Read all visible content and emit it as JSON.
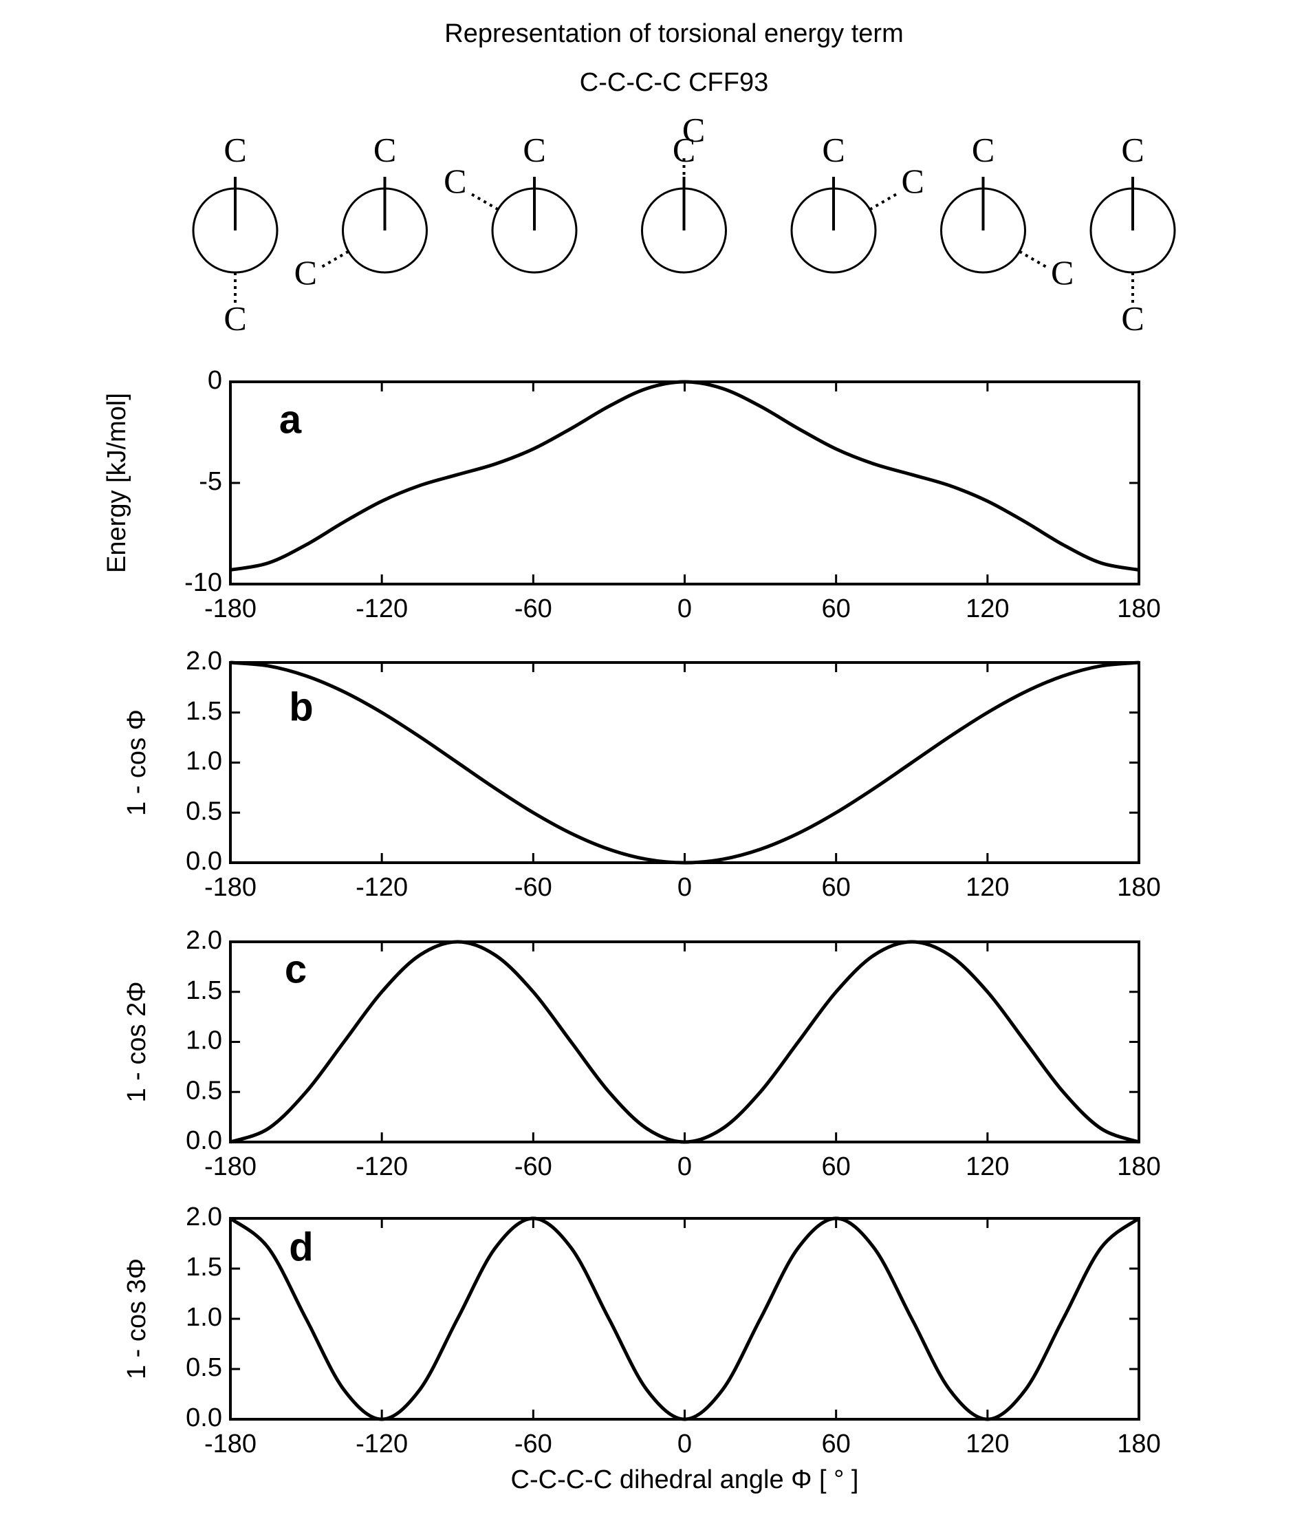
{
  "title": "Representation of torsional energy term",
  "subtitle": "C-C-C-C   CFF93",
  "newman_projections": [
    {
      "angle": -180,
      "front": "C",
      "back": "C"
    },
    {
      "angle": -120,
      "front": "C",
      "back": "C"
    },
    {
      "angle": -60,
      "front": "C",
      "back": "C"
    },
    {
      "angle": 0,
      "front": "C",
      "back": "C"
    },
    {
      "angle": 60,
      "front": "C",
      "back": "C"
    },
    {
      "angle": 120,
      "front": "C",
      "back": "C"
    },
    {
      "angle": 180,
      "front": "C",
      "back": "C"
    }
  ],
  "chart_data": [
    {
      "type": "line",
      "panel_label": "a",
      "ylabel": "Energy [kJ/mol]",
      "x": [
        -180,
        -165,
        -150,
        -135,
        -120,
        -105,
        -90,
        -75,
        -60,
        -45,
        -30,
        -15,
        0,
        15,
        30,
        45,
        60,
        75,
        90,
        105,
        120,
        135,
        150,
        165,
        180
      ],
      "series": [
        {
          "color": "#000000",
          "values": [
            -9.3,
            -8.96,
            -8.06,
            -6.93,
            -5.9,
            -5.13,
            -4.59,
            -4.06,
            -3.32,
            -2.31,
            -1.21,
            -0.33,
            0,
            -0.33,
            -1.21,
            -2.31,
            -3.32,
            -4.06,
            -4.59,
            -5.13,
            -5.9,
            -6.93,
            -8.06,
            -8.96,
            -9.3
          ]
        }
      ],
      "xlim": [
        -180,
        180
      ],
      "ylim": [
        -10,
        0
      ],
      "xticks": [
        -180,
        -120,
        -60,
        0,
        60,
        120,
        180
      ],
      "yticks": [
        -10,
        -5,
        0
      ]
    },
    {
      "type": "line",
      "panel_label": "b",
      "ylabel": "1 - cos Φ",
      "x": [
        -180,
        -165,
        -150,
        -135,
        -120,
        -105,
        -90,
        -75,
        -60,
        -45,
        -30,
        -15,
        0,
        15,
        30,
        45,
        60,
        75,
        90,
        105,
        120,
        135,
        150,
        165,
        180
      ],
      "series": [
        {
          "color": "#000000",
          "values": [
            2,
            1.966,
            1.866,
            1.707,
            1.5,
            1.259,
            1,
            0.741,
            0.5,
            0.293,
            0.134,
            0.034,
            0,
            0.034,
            0.134,
            0.293,
            0.5,
            0.741,
            1,
            1.259,
            1.5,
            1.707,
            1.866,
            1.966,
            2
          ]
        }
      ],
      "xlim": [
        -180,
        180
      ],
      "ylim": [
        0,
        2
      ],
      "xticks": [
        -180,
        -120,
        -60,
        0,
        60,
        120,
        180
      ],
      "yticks": [
        {
          "value": 0,
          "label": "0.0"
        },
        0.5,
        {
          "value": 1,
          "label": "1.0"
        },
        1.5,
        {
          "value": 2,
          "label": "2.0"
        }
      ]
    },
    {
      "type": "line",
      "panel_label": "c",
      "ylabel": "1 - cos 2Φ",
      "x": [
        -180,
        -165,
        -150,
        -135,
        -120,
        -105,
        -90,
        -75,
        -60,
        -45,
        -30,
        -15,
        0,
        15,
        30,
        45,
        60,
        75,
        90,
        105,
        120,
        135,
        150,
        165,
        180
      ],
      "series": [
        {
          "color": "#000000",
          "values": [
            0,
            0.134,
            0.5,
            1,
            1.5,
            1.866,
            2,
            1.866,
            1.5,
            1,
            0.5,
            0.134,
            0,
            0.134,
            0.5,
            1,
            1.5,
            1.866,
            2,
            1.866,
            1.5,
            1,
            0.5,
            0.134,
            0
          ]
        }
      ],
      "xlim": [
        -180,
        180
      ],
      "ylim": [
        0,
        2
      ],
      "xticks": [
        -180,
        -120,
        -60,
        0,
        60,
        120,
        180
      ],
      "yticks": [
        {
          "value": 0,
          "label": "0.0"
        },
        0.5,
        {
          "value": 1,
          "label": "1.0"
        },
        1.5,
        {
          "value": 2,
          "label": "2.0"
        }
      ]
    },
    {
      "type": "line",
      "panel_label": "d",
      "ylabel": "1 - cos 3Φ",
      "xlabel": "C-C-C-C dihedral angle Φ [ ° ]",
      "x": [
        -180,
        -165,
        -150,
        -135,
        -120,
        -105,
        -90,
        -75,
        -60,
        -45,
        -30,
        -15,
        0,
        15,
        30,
        45,
        60,
        75,
        90,
        105,
        120,
        135,
        150,
        165,
        180
      ],
      "series": [
        {
          "color": "#000000",
          "values": [
            2,
            1.707,
            1,
            0.293,
            0,
            0.293,
            1,
            1.707,
            2,
            1.707,
            1,
            0.293,
            0,
            0.293,
            1,
            1.707,
            2,
            1.707,
            1,
            0.293,
            0,
            0.293,
            1,
            1.707,
            2
          ]
        }
      ],
      "xlim": [
        -180,
        180
      ],
      "ylim": [
        0,
        2
      ],
      "xticks": [
        -180,
        -120,
        -60,
        0,
        60,
        120,
        180
      ],
      "yticks": [
        {
          "value": 0,
          "label": "0.0"
        },
        0.5,
        {
          "value": 1,
          "label": "1.0"
        },
        1.5,
        {
          "value": 2,
          "label": "2.0"
        }
      ]
    }
  ]
}
